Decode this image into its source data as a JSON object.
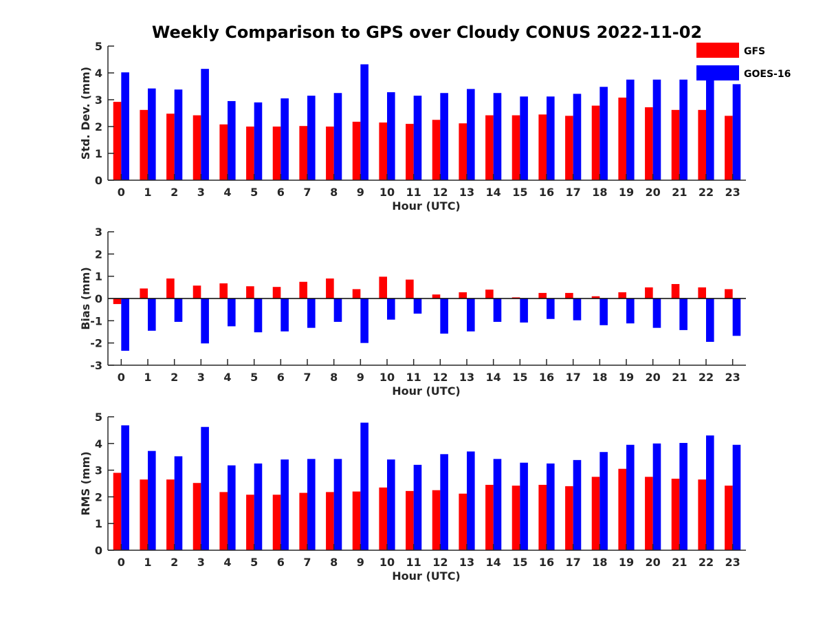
{
  "chart_data": [
    {
      "type": "bar",
      "title": "Weekly Comparison to GPS over Cloudy CONUS 2022-11-02",
      "xlabel": "Hour (UTC)",
      "ylabel": "Std. Dev. (mm)",
      "ylim": [
        0,
        5
      ],
      "yticks": [
        0,
        1,
        2,
        3,
        4,
        5
      ],
      "categories": [
        "0",
        "1",
        "2",
        "3",
        "4",
        "5",
        "6",
        "7",
        "8",
        "9",
        "10",
        "11",
        "12",
        "13",
        "14",
        "15",
        "16",
        "17",
        "18",
        "19",
        "20",
        "21",
        "22",
        "23"
      ],
      "series": [
        {
          "name": "GFS",
          "color": "#ff0000",
          "values": [
            2.92,
            2.62,
            2.48,
            2.42,
            2.08,
            2.0,
            2.0,
            2.02,
            2.0,
            2.18,
            2.15,
            2.1,
            2.25,
            2.12,
            2.42,
            2.42,
            2.45,
            2.4,
            2.78,
            3.08,
            2.72,
            2.62,
            2.62,
            2.4
          ]
        },
        {
          "name": "GOES-16",
          "color": "#0000ff",
          "values": [
            4.02,
            3.42,
            3.38,
            4.15,
            2.95,
            2.9,
            3.05,
            3.15,
            3.25,
            4.32,
            3.28,
            3.15,
            3.25,
            3.4,
            3.25,
            3.12,
            3.12,
            3.22,
            3.48,
            3.75,
            3.75,
            3.75,
            3.82,
            3.58
          ]
        }
      ],
      "legend": "top-right",
      "grid": false
    },
    {
      "type": "bar",
      "xlabel": "Hour (UTC)",
      "ylabel": "Bias (mm)",
      "ylim": [
        -3,
        3
      ],
      "yticks": [
        -3,
        -2,
        -1,
        0,
        1,
        2,
        3
      ],
      "categories": [
        "0",
        "1",
        "2",
        "3",
        "4",
        "5",
        "6",
        "7",
        "8",
        "9",
        "10",
        "11",
        "12",
        "13",
        "14",
        "15",
        "16",
        "17",
        "18",
        "19",
        "20",
        "21",
        "22",
        "23"
      ],
      "series": [
        {
          "name": "GFS",
          "color": "#ff0000",
          "values": [
            -0.25,
            0.45,
            0.9,
            0.58,
            0.68,
            0.55,
            0.52,
            0.75,
            0.9,
            0.42,
            0.98,
            0.85,
            0.18,
            0.28,
            0.4,
            0.05,
            0.25,
            0.25,
            0.1,
            0.28,
            0.5,
            0.65,
            0.5,
            0.42
          ]
        },
        {
          "name": "GOES-16",
          "color": "#0000ff",
          "values": [
            -2.35,
            -1.45,
            -1.05,
            -2.02,
            -1.25,
            -1.52,
            -1.48,
            -1.32,
            -1.05,
            -2.0,
            -0.95,
            -0.68,
            -1.58,
            -1.48,
            -1.05,
            -1.08,
            -0.92,
            -0.98,
            -1.2,
            -1.12,
            -1.32,
            -1.42,
            -1.95,
            -1.68
          ]
        }
      ],
      "grid": false
    },
    {
      "type": "bar",
      "xlabel": "Hour (UTC)",
      "ylabel": "RMS (mm)",
      "ylim": [
        0,
        5
      ],
      "yticks": [
        0,
        1,
        2,
        3,
        4,
        5
      ],
      "categories": [
        "0",
        "1",
        "2",
        "3",
        "4",
        "5",
        "6",
        "7",
        "8",
        "9",
        "10",
        "11",
        "12",
        "13",
        "14",
        "15",
        "16",
        "17",
        "18",
        "19",
        "20",
        "21",
        "22",
        "23"
      ],
      "series": [
        {
          "name": "GFS",
          "color": "#ff0000",
          "values": [
            2.9,
            2.65,
            2.65,
            2.52,
            2.18,
            2.08,
            2.08,
            2.15,
            2.18,
            2.2,
            2.35,
            2.22,
            2.25,
            2.12,
            2.45,
            2.42,
            2.45,
            2.4,
            2.75,
            3.05,
            2.75,
            2.68,
            2.65,
            2.42
          ]
        },
        {
          "name": "GOES-16",
          "color": "#0000ff",
          "values": [
            4.68,
            3.72,
            3.52,
            4.62,
            3.18,
            3.25,
            3.4,
            3.42,
            3.42,
            4.78,
            3.4,
            3.2,
            3.6,
            3.7,
            3.42,
            3.28,
            3.25,
            3.38,
            3.68,
            3.95,
            4.0,
            4.02,
            4.3,
            3.95
          ]
        }
      ],
      "grid": false
    }
  ]
}
